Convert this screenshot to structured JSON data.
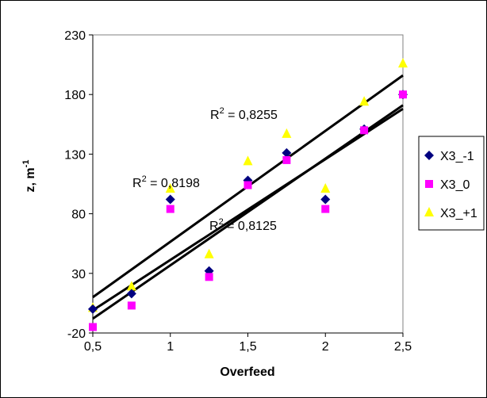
{
  "chart_data": {
    "type": "scatter",
    "xlabel": "Overfeed",
    "ylabel": "z, m",
    "ylabel_sup": "-1",
    "xlim": [
      0.5,
      2.5
    ],
    "ylim": [
      -20,
      230
    ],
    "x_ticks": [
      0.5,
      1,
      1.5,
      2,
      2.5
    ],
    "x_tick_labels": [
      "0,5",
      "1",
      "1,5",
      "2",
      "2,5"
    ],
    "y_ticks": [
      -20,
      30,
      80,
      130,
      180,
      230
    ],
    "y_tick_labels": [
      "-20",
      "30",
      "80",
      "130",
      "180",
      "230"
    ],
    "grid": false,
    "legend_position": "right",
    "series": [
      {
        "name": "X3_-1",
        "marker": "diamond",
        "color": "#000080",
        "x": [
          0.5,
          0.75,
          1,
          1.25,
          1.5,
          1.75,
          2,
          2.25,
          2.5
        ],
        "y": [
          0,
          13,
          92,
          32,
          108,
          131,
          92,
          151,
          180
        ],
        "trend": [
          -8,
          171
        ]
      },
      {
        "name": "X3_0",
        "marker": "square",
        "color": "#FF00FF",
        "x": [
          0.5,
          0.75,
          1,
          1.25,
          1.5,
          1.75,
          2,
          2.25,
          2.5
        ],
        "y": [
          -15,
          3,
          84,
          27,
          104,
          125,
          84,
          150,
          180
        ],
        "trend": [
          -1,
          168
        ]
      },
      {
        "name": "X3_+1",
        "marker": "triangle",
        "color": "#FFFF00",
        "x": [
          0.5,
          0.75,
          1,
          1.25,
          1.5,
          1.75,
          2,
          2.25,
          2.5
        ],
        "y": [
          1,
          19,
          101,
          46,
          124,
          147,
          101,
          174,
          206
        ],
        "trend": [
          10,
          196
        ]
      }
    ],
    "annotations": [
      {
        "label": "R",
        "sup": "2",
        "rest": " = 0,8255"
      },
      {
        "label": "R",
        "sup": "2",
        "rest": " = 0,8198"
      },
      {
        "label": "R",
        "sup": "2",
        "rest": " = 0,8125"
      }
    ]
  }
}
